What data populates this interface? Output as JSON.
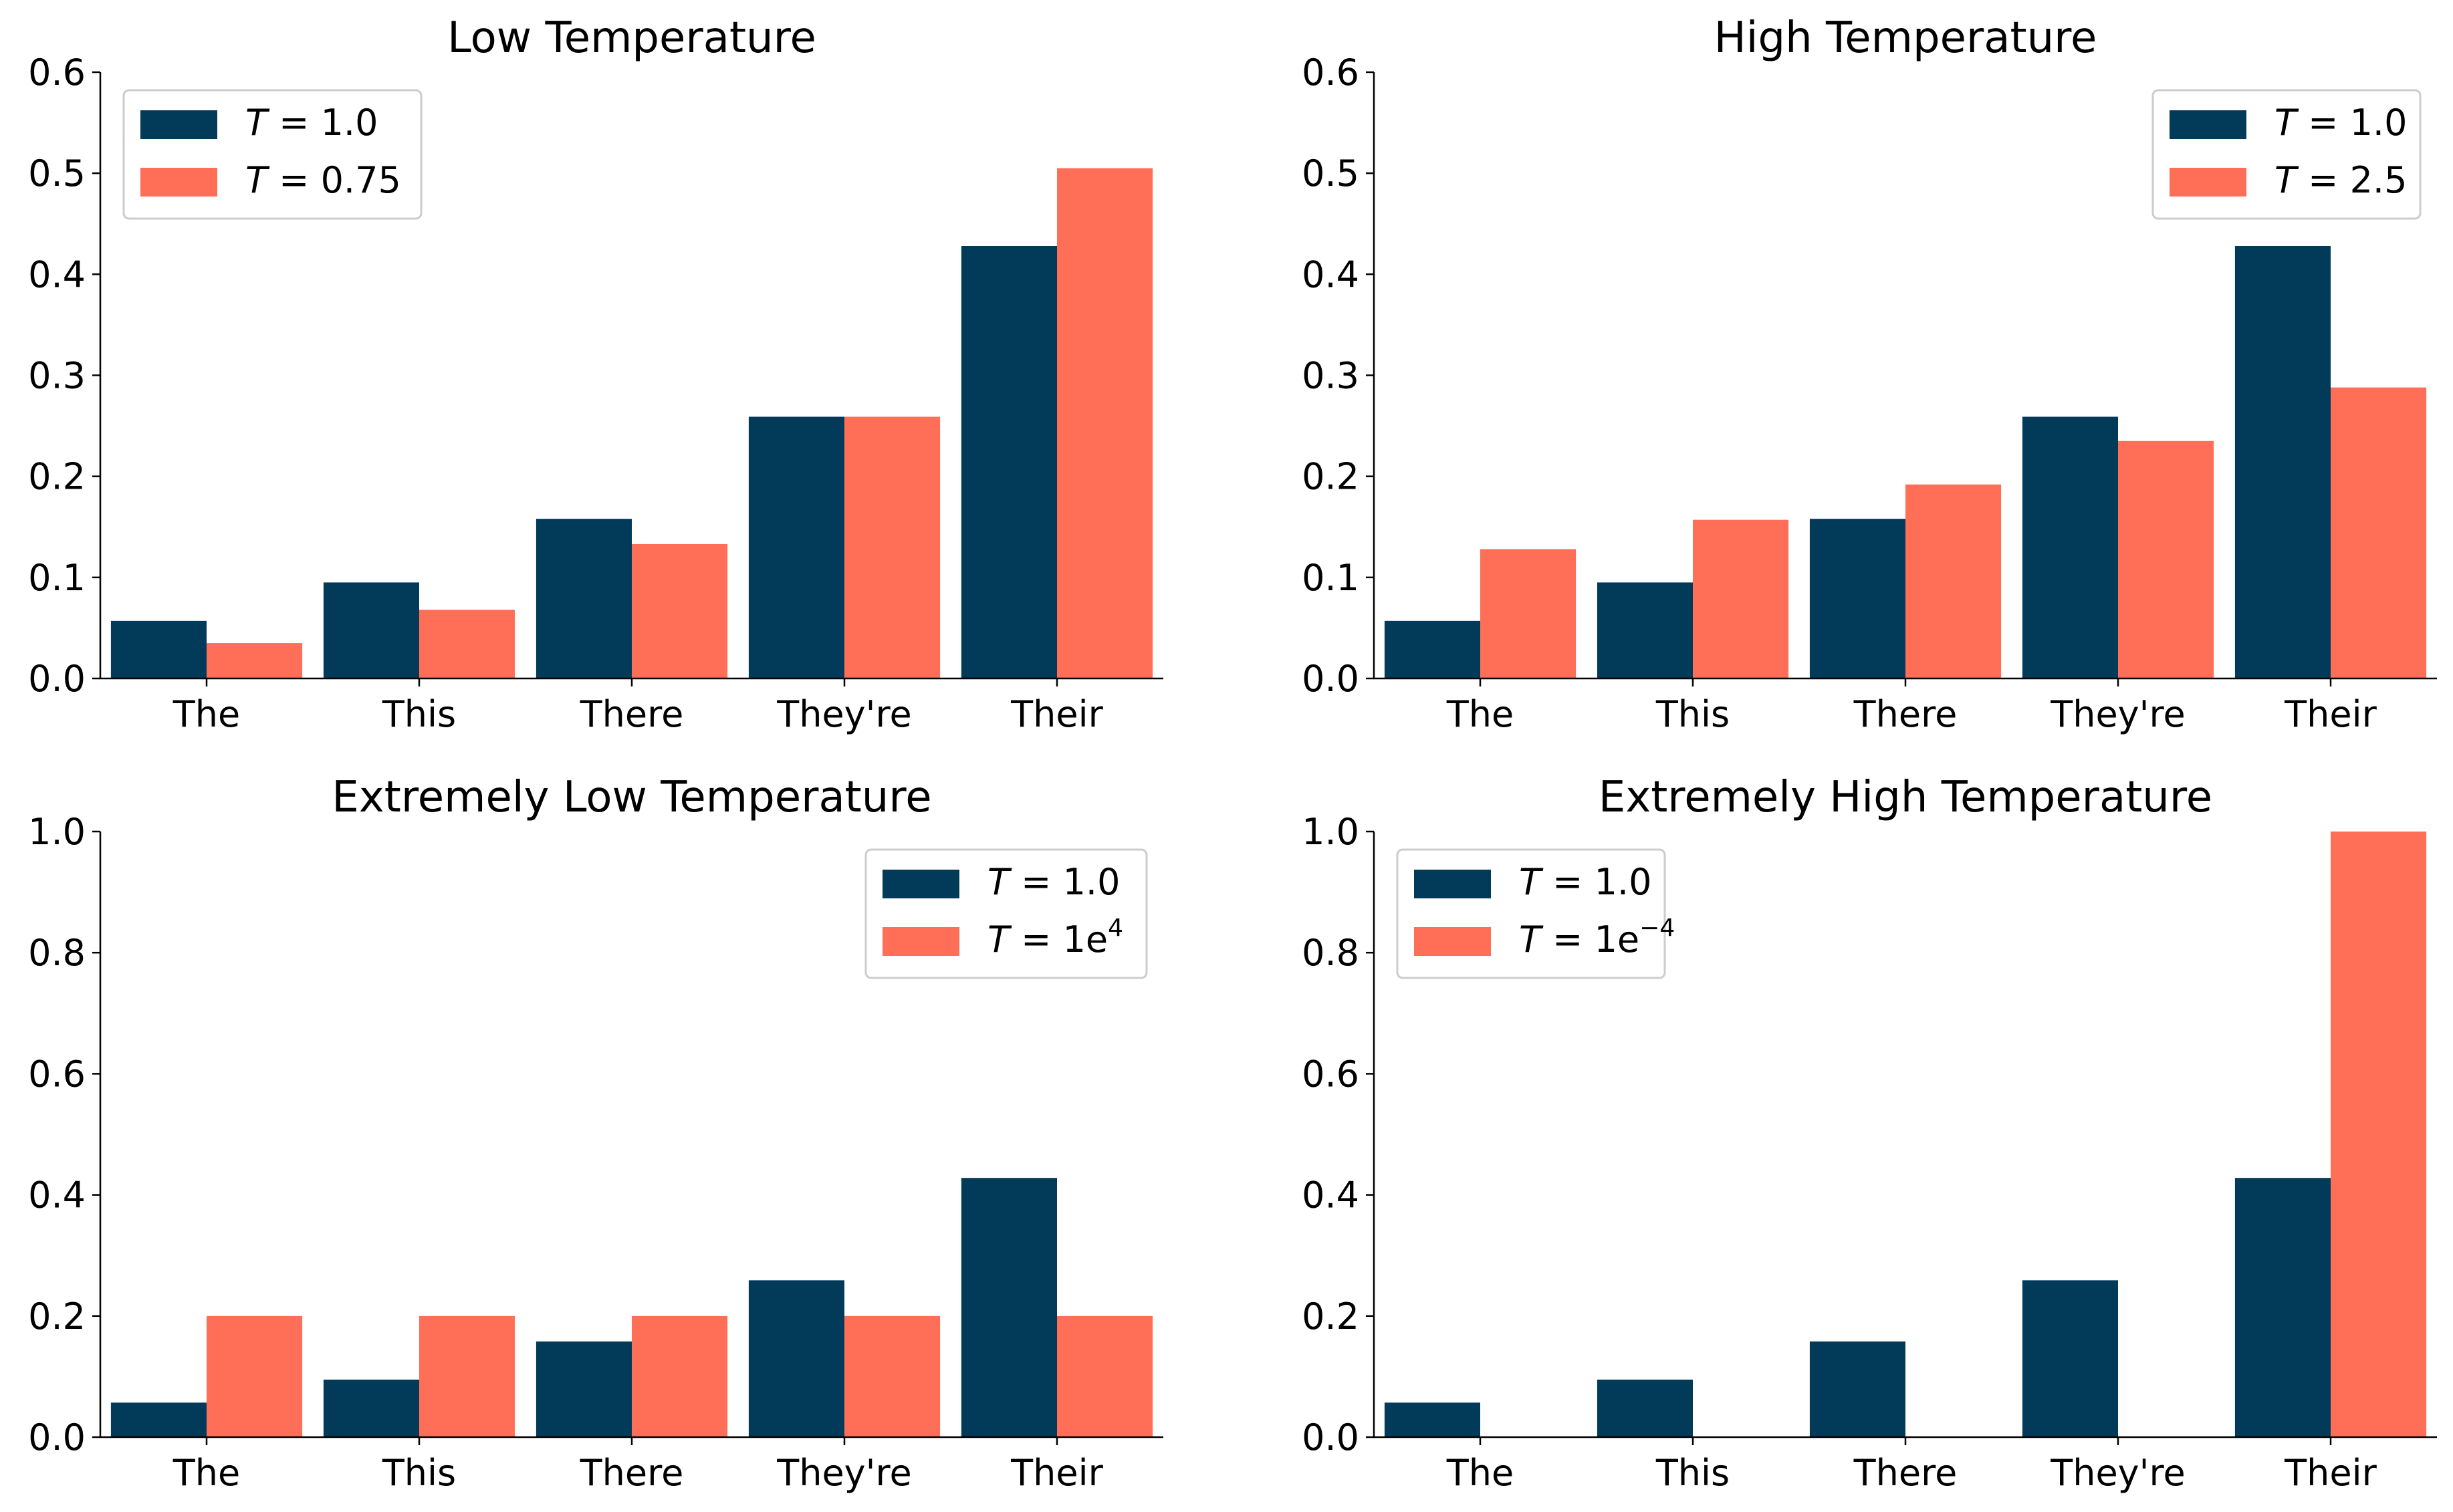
{
  "chart_data": [
    {
      "type": "bar",
      "title": "Low Temperature",
      "categories": [
        "The",
        "This",
        "There",
        "They're",
        "Their"
      ],
      "ylim": [
        0,
        0.6
      ],
      "yticks": [
        "0.0",
        "0.1",
        "0.2",
        "0.3",
        "0.4",
        "0.5",
        "0.6"
      ],
      "legend_position": "top-left",
      "series": [
        {
          "label": "T = 1.0",
          "values": [
            0.057,
            0.095,
            0.158,
            0.259,
            0.428
          ],
          "color": "#023a59"
        },
        {
          "label": "T = 0.75",
          "values": [
            0.035,
            0.068,
            0.133,
            0.259,
            0.505
          ],
          "color": "#ff6f57"
        }
      ]
    },
    {
      "type": "bar",
      "title": "High Temperature",
      "categories": [
        "The",
        "This",
        "There",
        "They're",
        "Their"
      ],
      "ylim": [
        0,
        0.6
      ],
      "yticks": [
        "0.0",
        "0.1",
        "0.2",
        "0.3",
        "0.4",
        "0.5",
        "0.6"
      ],
      "legend_position": "top-right",
      "series": [
        {
          "label": "T = 1.0",
          "values": [
            0.057,
            0.095,
            0.158,
            0.259,
            0.428
          ],
          "color": "#023a59"
        },
        {
          "label": "T = 2.5",
          "values": [
            0.128,
            0.157,
            0.192,
            0.235,
            0.288
          ],
          "color": "#ff6f57"
        }
      ]
    },
    {
      "type": "bar",
      "title": "Extremely Low Temperature",
      "categories": [
        "The",
        "This",
        "There",
        "They're",
        "Their"
      ],
      "ylim": [
        0,
        1.0
      ],
      "yticks": [
        "0.0",
        "0.2",
        "0.4",
        "0.6",
        "0.8",
        "1.0"
      ],
      "legend_position": "top-right",
      "series": [
        {
          "label": "T = 1.0",
          "values": [
            0.057,
            0.095,
            0.158,
            0.259,
            0.428
          ],
          "color": "#023a59"
        },
        {
          "label": "T = 1e",
          "label_sup": "4",
          "values": [
            0.2,
            0.2,
            0.2,
            0.2,
            0.2
          ],
          "color": "#ff6f57"
        }
      ]
    },
    {
      "type": "bar",
      "title": "Extremely High Temperature",
      "categories": [
        "The",
        "This",
        "There",
        "They're",
        "Their"
      ],
      "ylim": [
        0,
        1.0
      ],
      "yticks": [
        "0.0",
        "0.2",
        "0.4",
        "0.6",
        "0.8",
        "1.0"
      ],
      "legend_position": "top-left",
      "series": [
        {
          "label": "T = 1.0",
          "values": [
            0.057,
            0.095,
            0.158,
            0.259,
            0.428
          ],
          "color": "#023a59"
        },
        {
          "label": "T = 1e",
          "label_sup": "−4",
          "values": [
            0.0,
            0.0,
            0.0,
            0.0,
            1.0
          ],
          "color": "#ff6f57"
        }
      ]
    }
  ]
}
